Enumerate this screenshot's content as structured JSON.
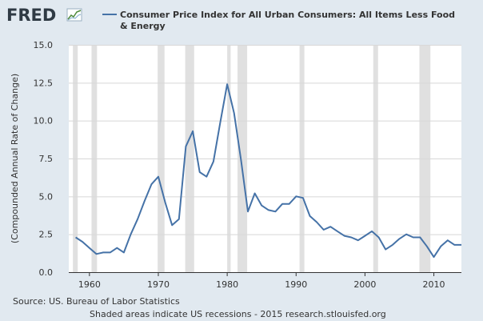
{
  "header": {
    "logo_text": "FRED",
    "logo_icon": "chart-sparkline-icon"
  },
  "colors": {
    "background": "#e1e9f0",
    "plot_background": "#ffffff",
    "series_line": "#4572a7",
    "recession_shade": "#e0e0e0",
    "grid": "#d8d8d8",
    "text": "#333333"
  },
  "footer": {
    "source": "Source: US. Bureau of Labor Statistics",
    "note": "Shaded areas indicate US recessions - 2015 research.stlouisfed.org"
  },
  "chart_data": {
    "type": "line",
    "title": "",
    "xlabel": "",
    "ylabel": "(Compounded Annual Rate of Change)",
    "xlim": [
      1957,
      2014
    ],
    "ylim": [
      0,
      15
    ],
    "grid": true,
    "legend_position": "top",
    "x_ticks": [
      1960,
      1970,
      1980,
      1990,
      2000,
      2010
    ],
    "x_tick_labels": [
      "1960",
      "1970",
      "1980",
      "1990",
      "2000",
      "2010"
    ],
    "y_ticks": [
      0,
      2.5,
      5,
      7.5,
      10,
      12.5,
      15
    ],
    "y_tick_labels": [
      "0.0",
      "2.5",
      "5.0",
      "7.5",
      "10.0",
      "12.5",
      "15.0"
    ],
    "recessions": [
      [
        1957.6,
        1958.3
      ],
      [
        1960.3,
        1961.1
      ],
      [
        1969.9,
        1970.9
      ],
      [
        1973.9,
        1975.2
      ],
      [
        1980.0,
        1980.5
      ],
      [
        1981.5,
        1982.9
      ],
      [
        1990.5,
        1991.2
      ],
      [
        2001.2,
        2001.9
      ],
      [
        2007.9,
        2009.5
      ]
    ],
    "series": [
      {
        "name": "Consumer Price Index for All Urban Consumers: All Items Less Food & Energy",
        "color": "#4572a7",
        "x": [
          1958,
          1959,
          1960,
          1961,
          1962,
          1963,
          1964,
          1965,
          1966,
          1967,
          1968,
          1969,
          1970,
          1971,
          1972,
          1973,
          1974,
          1975,
          1976,
          1977,
          1978,
          1979,
          1980,
          1981,
          1982,
          1983,
          1984,
          1985,
          1986,
          1987,
          1988,
          1989,
          1990,
          1991,
          1992,
          1993,
          1994,
          1995,
          1996,
          1997,
          1998,
          1999,
          2000,
          2001,
          2002,
          2003,
          2004,
          2005,
          2006,
          2007,
          2008,
          2009,
          2010,
          2011,
          2012,
          2013,
          2014
        ],
        "y": [
          2.3,
          2.0,
          1.6,
          1.2,
          1.3,
          1.3,
          1.6,
          1.3,
          2.5,
          3.5,
          4.7,
          5.8,
          6.3,
          4.6,
          3.1,
          3.5,
          8.3,
          9.3,
          6.6,
          6.3,
          7.3,
          9.9,
          12.4,
          10.5,
          7.4,
          4.0,
          5.2,
          4.4,
          4.1,
          4.0,
          4.5,
          4.5,
          5.0,
          4.9,
          3.7,
          3.3,
          2.8,
          3.0,
          2.7,
          2.4,
          2.3,
          2.1,
          2.4,
          2.7,
          2.3,
          1.5,
          1.8,
          2.2,
          2.5,
          2.3,
          2.3,
          1.7,
          1.0,
          1.7,
          2.1,
          1.8,
          1.8
        ]
      }
    ]
  }
}
